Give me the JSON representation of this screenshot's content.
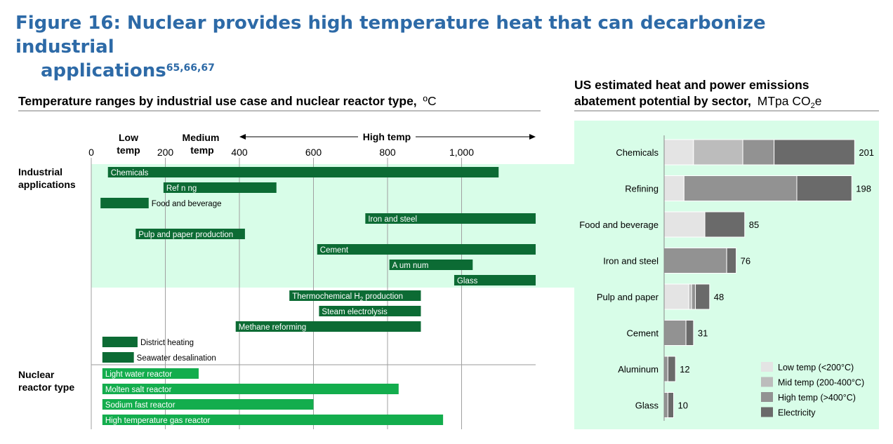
{
  "figure": {
    "title_line1": "Figure 16: Nuclear provides high temperature heat that can decarbonize industrial",
    "title_line2": "applications",
    "superscript": "65,66,67"
  },
  "colors": {
    "title": "#2d6aa7",
    "industrial_bar": "#0c6b34",
    "reactor_bar": "#13ad4d",
    "panel_bg": "#d8fde8",
    "low_temp": "#e4e4e4",
    "mid_temp": "#bcbcbc",
    "high_temp": "#929292",
    "electricity": "#6a6a6a"
  },
  "chart_data": [
    {
      "type": "range-bar",
      "title_bold": "Temperature ranges by industrial use case and nuclear reactor type,",
      "title_unit": "ºC",
      "xlim": [
        0,
        1200
      ],
      "ticks": [
        0,
        200,
        400,
        600,
        800,
        1000
      ],
      "tick_labels": [
        "0",
        "200",
        "400",
        "600",
        "800",
        "1,000"
      ],
      "bands": {
        "low": "Low temp",
        "medium": "Medium temp",
        "high": "High temp"
      },
      "groups": {
        "industrial": "Industrial applications",
        "reactor": "Nuclear reactor type"
      },
      "industrial": [
        {
          "label": "Chemicals",
          "start": 45,
          "end": 1100,
          "label_pos": "inside"
        },
        {
          "label": "Ref n ng",
          "start": 195,
          "end": 500,
          "label_pos": "inside"
        },
        {
          "label": "Food and beverage",
          "start": 25,
          "end": 155,
          "label_pos": "outside"
        },
        {
          "label": "Iron and steel",
          "start": 740,
          "end": 1200,
          "label_pos": "inside"
        },
        {
          "label": "Pulp and paper production",
          "start": 120,
          "end": 415,
          "label_pos": "inside"
        },
        {
          "label": "Cement",
          "start": 610,
          "end": 1200,
          "label_pos": "inside"
        },
        {
          "label": "A um num",
          "start": 805,
          "end": 1030,
          "label_pos": "inside"
        },
        {
          "label": "Glass",
          "start": 980,
          "end": 1200,
          "label_pos": "inside"
        },
        {
          "label": "Thermochemical H",
          "label_sub": "2",
          "label_tail": " production",
          "start": 535,
          "end": 890,
          "label_pos": "inside"
        },
        {
          "label": "Steam electrolysis",
          "start": 615,
          "end": 890,
          "label_pos": "inside"
        },
        {
          "label": "Methane reforming",
          "start": 390,
          "end": 890,
          "label_pos": "inside"
        },
        {
          "label": "District heating",
          "start": 30,
          "end": 125,
          "label_pos": "outside"
        },
        {
          "label": "Seawater desalination",
          "start": 30,
          "end": 115,
          "label_pos": "outside"
        }
      ],
      "reactors": [
        {
          "label": "Light water reactor",
          "start": 30,
          "end": 290
        },
        {
          "label": "Molten salt reactor",
          "start": 30,
          "end": 830
        },
        {
          "label": "Sodium fast reactor",
          "start": 30,
          "end": 600
        },
        {
          "label": "High temperature gas reactor",
          "start": 30,
          "end": 950
        }
      ]
    },
    {
      "type": "stacked-bar-horizontal",
      "title_bold_line1": "US estimated heat and power emissions",
      "title_bold_line2": "abatement potential by sector,",
      "unit_pre": "MTpa CO",
      "unit_sub": "2",
      "unit_post": "e",
      "categories": [
        "Chemicals",
        "Refining",
        "Food and beverage",
        "Iron and steel",
        "Pulp and paper",
        "Cement",
        "Aluminum",
        "Glass"
      ],
      "totals": [
        201,
        198,
        85,
        76,
        48,
        31,
        12,
        10
      ],
      "series": [
        {
          "name": "Low temp (<200°C)",
          "values": [
            31,
            21,
            43,
            0,
            26,
            0,
            0,
            0
          ]
        },
        {
          "name": "Mid temp (200-400°C)",
          "values": [
            52,
            0,
            0,
            0,
            3,
            0,
            0,
            0
          ]
        },
        {
          "name": "High temp (>400°C)",
          "values": [
            33,
            119,
            0,
            66,
            4,
            23,
            4,
            4
          ]
        },
        {
          "name": "Electricity",
          "values": [
            85,
            58,
            42,
            10,
            15,
            8,
            8,
            6
          ]
        }
      ],
      "xlim": [
        0,
        220
      ]
    }
  ]
}
